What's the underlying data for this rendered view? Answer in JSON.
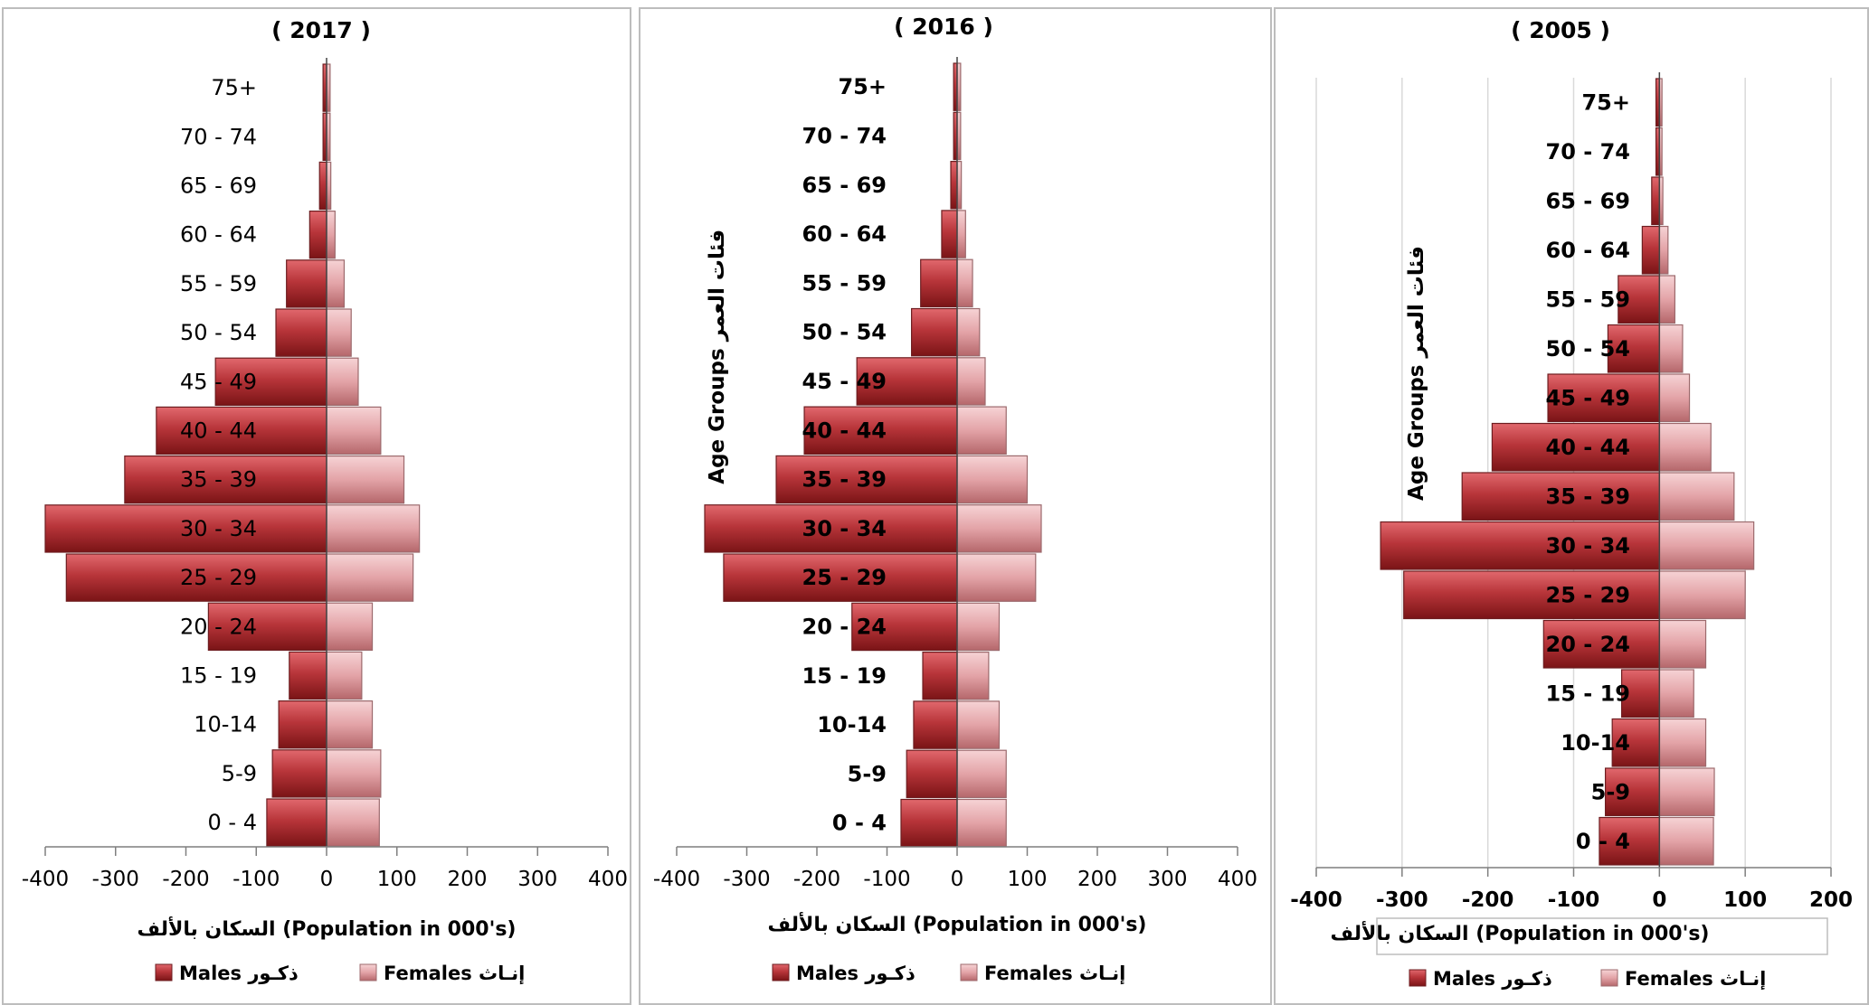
{
  "chart_data": [
    {
      "type": "bar",
      "orientation": "horizontal-pyramid",
      "title": "( 2017 )",
      "categories": [
        "0 - 4",
        "5-9",
        "10-14",
        "15 - 19",
        "20 - 24",
        "25 - 29",
        "30 - 34",
        "35 - 39",
        "40 - 44",
        "45 - 49",
        "50 - 54",
        "55 - 59",
        "60 - 64",
        "65 - 69",
        "70 - 74",
        "75+"
      ],
      "series": [
        {
          "name": "Males ذكور",
          "values": [
            -85,
            -77,
            -68,
            -53,
            -168,
            -370,
            -400,
            -287,
            -242,
            -158,
            -72,
            -57,
            -24,
            -10,
            -5,
            -5
          ]
        },
        {
          "name": "Females إنـاث",
          "values": [
            75,
            77,
            65,
            50,
            65,
            123,
            132,
            110,
            77,
            45,
            35,
            25,
            12,
            6,
            5,
            5
          ]
        }
      ],
      "xlim": [
        -400,
        400
      ],
      "xticks": [
        "-400",
        "-300",
        "-200",
        "-100",
        "0",
        "100",
        "200",
        "300",
        "400"
      ],
      "xlabel": "السكان بالألف (Population in 000's)",
      "ylabel": "",
      "legend_position": "bottom",
      "grid": false
    },
    {
      "type": "bar",
      "orientation": "horizontal-pyramid",
      "title": "( 2016 )",
      "categories": [
        "0 - 4",
        "5-9",
        "10-14",
        "15 - 19",
        "20 - 24",
        "25 - 29",
        "30 - 34",
        "35 - 39",
        "40 - 44",
        "45 - 49",
        "50 - 54",
        "55 - 59",
        "60 - 64",
        "65 - 69",
        "70 - 74",
        "75+"
      ],
      "series": [
        {
          "name": "Males ذكور",
          "values": [
            -80,
            -72,
            -62,
            -49,
            -150,
            -333,
            -360,
            -258,
            -218,
            -143,
            -65,
            -52,
            -22,
            -9,
            -5,
            -5
          ]
        },
        {
          "name": "Females إنـاث",
          "values": [
            70,
            70,
            60,
            45,
            60,
            112,
            120,
            100,
            70,
            40,
            32,
            22,
            12,
            6,
            5,
            5
          ]
        }
      ],
      "xlim": [
        -400,
        400
      ],
      "xticks": [
        "-400",
        "-300",
        "-200",
        "-100",
        "0",
        "100",
        "200",
        "300",
        "400"
      ],
      "xlabel": "السكان بالألف (Population in 000's)",
      "ylabel": "Age Groups فئات العمر",
      "legend_position": "bottom",
      "grid": false
    },
    {
      "type": "bar",
      "orientation": "horizontal-pyramid",
      "title": "( 2005 )",
      "categories": [
        "0 - 4",
        "5-9",
        "10-14",
        "15 - 19",
        "20 - 24",
        "25 - 29",
        "30 - 34",
        "35 - 39",
        "40 - 44",
        "45 - 49",
        "50 - 54",
        "55 - 59",
        "60 - 64",
        "65 - 69",
        "70 - 74",
        "75+"
      ],
      "series": [
        {
          "name": "Males ذكور",
          "values": [
            -70,
            -63,
            -55,
            -44,
            -135,
            -298,
            -325,
            -230,
            -195,
            -130,
            -60,
            -48,
            -20,
            -9,
            -4,
            -4
          ]
        },
        {
          "name": "Females إنـاث",
          "values": [
            63,
            64,
            54,
            40,
            54,
            100,
            110,
            87,
            60,
            35,
            27,
            18,
            10,
            4,
            3,
            3
          ]
        }
      ],
      "xlim": [
        -400,
        200
      ],
      "xticks": [
        "-400",
        "-300",
        "-200",
        "-100",
        "0",
        "100",
        "200"
      ],
      "xlabel": "السكان بالألف (Population in 000's)",
      "ylabel": "Age Groups فئات العمر",
      "legend_position": "bottom",
      "grid": true
    }
  ],
  "colors": {
    "male": "#b8353a",
    "male_dark": "#7a1416",
    "female": "#e3a3a7",
    "female_dark": "#b5676b",
    "frame": "#bdbdbd"
  },
  "legend": {
    "male_label": "Males  ذكـور",
    "female_label": "Females  إنـاث"
  }
}
